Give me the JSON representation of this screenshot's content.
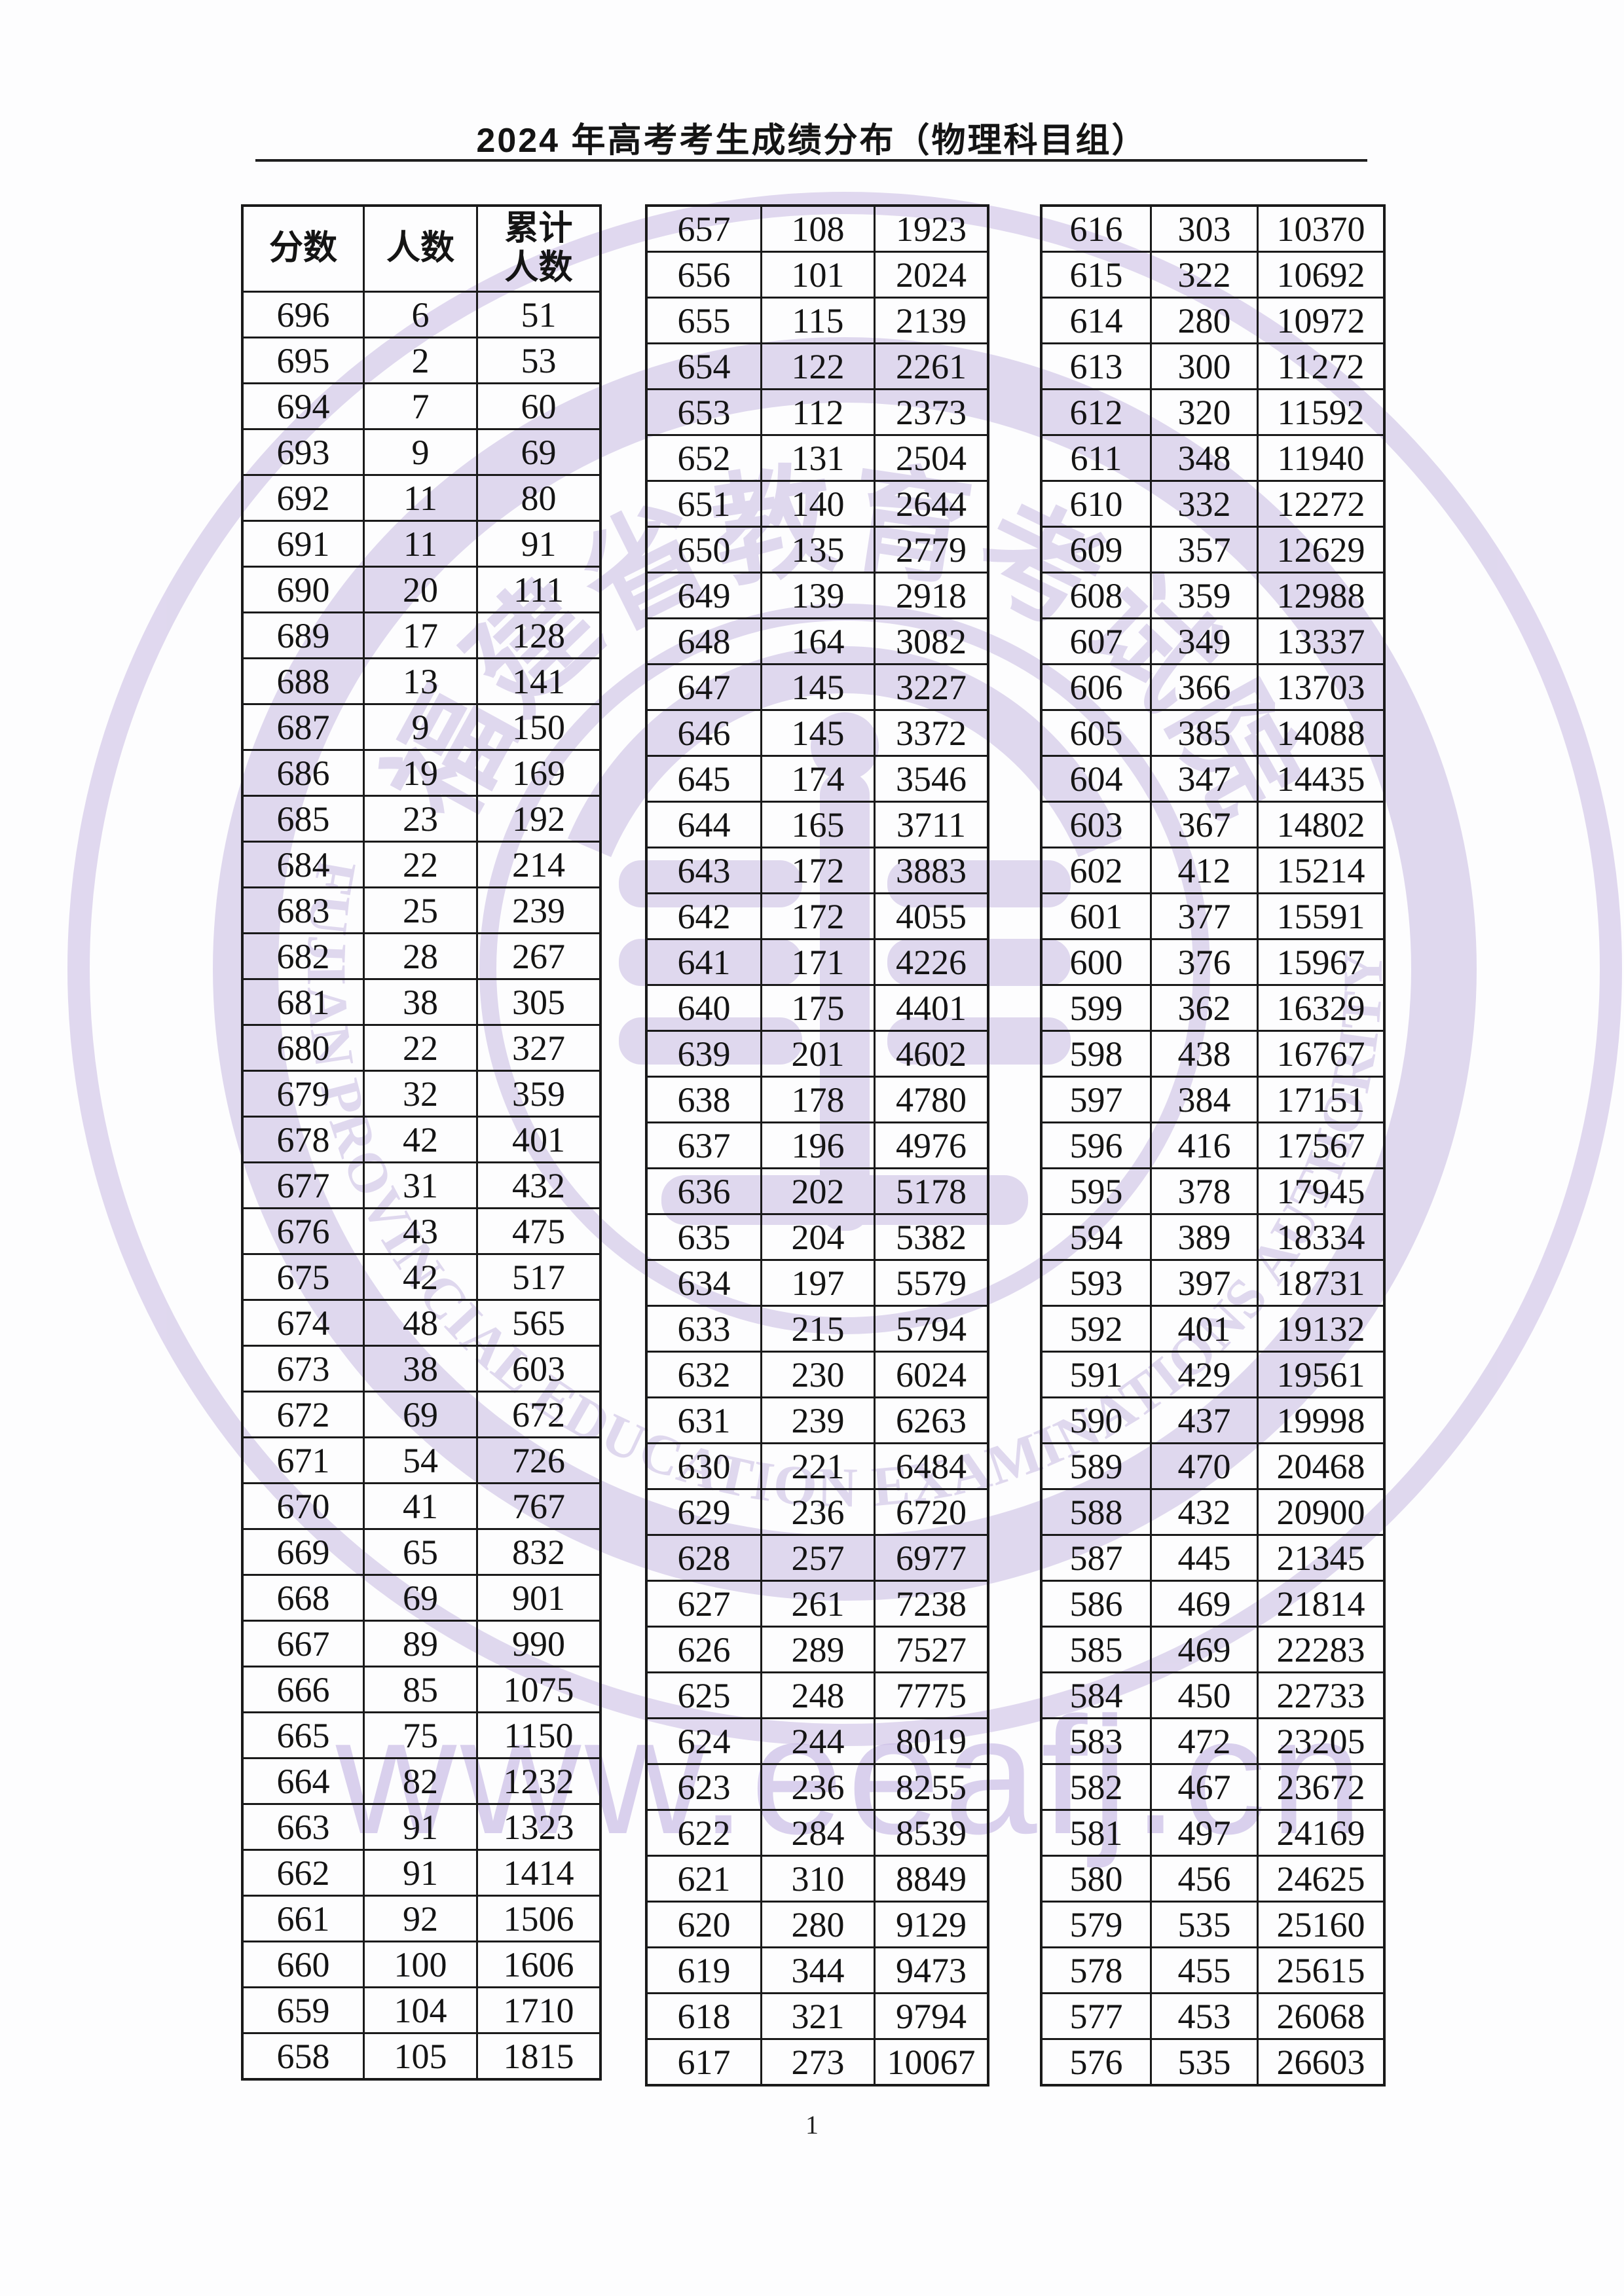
{
  "page": {
    "title": "2024 年高考考生成绩分布（物理科目组）",
    "page_number": "1"
  },
  "watermark": {
    "seal_cn": "福建省教育考试院",
    "seal_en": "FUJIAN PROVINCIAL EDUCATION EXAMINATIONS AUTHORITY",
    "url": "www.eeafj.cn",
    "color": "#c3b4e0"
  },
  "colors": {
    "table_border": "#1a1a1a",
    "text": "#141414",
    "watermark_lavender": "#c3b4e0"
  },
  "table_header": {
    "score": "分数",
    "count": "人数",
    "cumulative_line1": "累计",
    "cumulative_line2": "人数"
  },
  "tables": {
    "left": {
      "rows": [
        [
          696,
          6,
          51
        ],
        [
          695,
          2,
          53
        ],
        [
          694,
          7,
          60
        ],
        [
          693,
          9,
          69
        ],
        [
          692,
          11,
          80
        ],
        [
          691,
          11,
          91
        ],
        [
          690,
          20,
          111
        ],
        [
          689,
          17,
          128
        ],
        [
          688,
          13,
          141
        ],
        [
          687,
          9,
          150
        ],
        [
          686,
          19,
          169
        ],
        [
          685,
          23,
          192
        ],
        [
          684,
          22,
          214
        ],
        [
          683,
          25,
          239
        ],
        [
          682,
          28,
          267
        ],
        [
          681,
          38,
          305
        ],
        [
          680,
          22,
          327
        ],
        [
          679,
          32,
          359
        ],
        [
          678,
          42,
          401
        ],
        [
          677,
          31,
          432
        ],
        [
          676,
          43,
          475
        ],
        [
          675,
          42,
          517
        ],
        [
          674,
          48,
          565
        ],
        [
          673,
          38,
          603
        ],
        [
          672,
          69,
          672
        ],
        [
          671,
          54,
          726
        ],
        [
          670,
          41,
          767
        ],
        [
          669,
          65,
          832
        ],
        [
          668,
          69,
          901
        ],
        [
          667,
          89,
          990
        ],
        [
          666,
          85,
          1075
        ],
        [
          665,
          75,
          1150
        ],
        [
          664,
          82,
          1232
        ],
        [
          663,
          91,
          1323
        ],
        [
          662,
          91,
          1414
        ],
        [
          661,
          92,
          1506
        ],
        [
          660,
          100,
          1606
        ],
        [
          659,
          104,
          1710
        ],
        [
          658,
          105,
          1815
        ]
      ]
    },
    "middle": {
      "rows": [
        [
          657,
          108,
          1923
        ],
        [
          656,
          101,
          2024
        ],
        [
          655,
          115,
          2139
        ],
        [
          654,
          122,
          2261
        ],
        [
          653,
          112,
          2373
        ],
        [
          652,
          131,
          2504
        ],
        [
          651,
          140,
          2644
        ],
        [
          650,
          135,
          2779
        ],
        [
          649,
          139,
          2918
        ],
        [
          648,
          164,
          3082
        ],
        [
          647,
          145,
          3227
        ],
        [
          646,
          145,
          3372
        ],
        [
          645,
          174,
          3546
        ],
        [
          644,
          165,
          3711
        ],
        [
          643,
          172,
          3883
        ],
        [
          642,
          172,
          4055
        ],
        [
          641,
          171,
          4226
        ],
        [
          640,
          175,
          4401
        ],
        [
          639,
          201,
          4602
        ],
        [
          638,
          178,
          4780
        ],
        [
          637,
          196,
          4976
        ],
        [
          636,
          202,
          5178
        ],
        [
          635,
          204,
          5382
        ],
        [
          634,
          197,
          5579
        ],
        [
          633,
          215,
          5794
        ],
        [
          632,
          230,
          6024
        ],
        [
          631,
          239,
          6263
        ],
        [
          630,
          221,
          6484
        ],
        [
          629,
          236,
          6720
        ],
        [
          628,
          257,
          6977
        ],
        [
          627,
          261,
          7238
        ],
        [
          626,
          289,
          7527
        ],
        [
          625,
          248,
          7775
        ],
        [
          624,
          244,
          8019
        ],
        [
          623,
          236,
          8255
        ],
        [
          622,
          284,
          8539
        ],
        [
          621,
          310,
          8849
        ],
        [
          620,
          280,
          9129
        ],
        [
          619,
          344,
          9473
        ],
        [
          618,
          321,
          9794
        ],
        [
          617,
          273,
          10067
        ]
      ]
    },
    "right": {
      "rows": [
        [
          616,
          303,
          10370
        ],
        [
          615,
          322,
          10692
        ],
        [
          614,
          280,
          10972
        ],
        [
          613,
          300,
          11272
        ],
        [
          612,
          320,
          11592
        ],
        [
          611,
          348,
          11940
        ],
        [
          610,
          332,
          12272
        ],
        [
          609,
          357,
          12629
        ],
        [
          608,
          359,
          12988
        ],
        [
          607,
          349,
          13337
        ],
        [
          606,
          366,
          13703
        ],
        [
          605,
          385,
          14088
        ],
        [
          604,
          347,
          14435
        ],
        [
          603,
          367,
          14802
        ],
        [
          602,
          412,
          15214
        ],
        [
          601,
          377,
          15591
        ],
        [
          600,
          376,
          15967
        ],
        [
          599,
          362,
          16329
        ],
        [
          598,
          438,
          16767
        ],
        [
          597,
          384,
          17151
        ],
        [
          596,
          416,
          17567
        ],
        [
          595,
          378,
          17945
        ],
        [
          594,
          389,
          18334
        ],
        [
          593,
          397,
          18731
        ],
        [
          592,
          401,
          19132
        ],
        [
          591,
          429,
          19561
        ],
        [
          590,
          437,
          19998
        ],
        [
          589,
          470,
          20468
        ],
        [
          588,
          432,
          20900
        ],
        [
          587,
          445,
          21345
        ],
        [
          586,
          469,
          21814
        ],
        [
          585,
          469,
          22283
        ],
        [
          584,
          450,
          22733
        ],
        [
          583,
          472,
          23205
        ],
        [
          582,
          467,
          23672
        ],
        [
          581,
          497,
          24169
        ],
        [
          580,
          456,
          24625
        ],
        [
          579,
          535,
          25160
        ],
        [
          578,
          455,
          25615
        ],
        [
          577,
          453,
          26068
        ],
        [
          576,
          535,
          26603
        ]
      ]
    }
  }
}
